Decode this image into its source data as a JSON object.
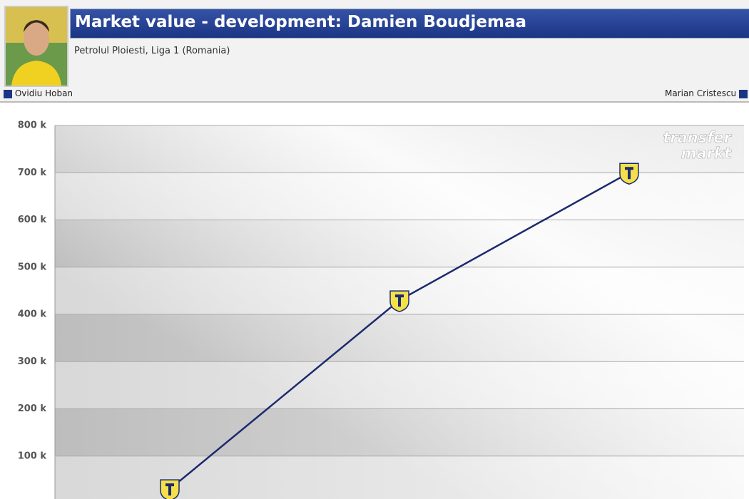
{
  "header": {
    "title": "Market value - development: Damien Boudjemaa",
    "subtitle": "Petrolul Ploiesti, Liga 1 (Romania)",
    "prev": "Ovidiu Hoban",
    "next": "Marian Cristescu"
  },
  "chart_data": {
    "type": "line",
    "categories": [
      null,
      null,
      null
    ],
    "values": [
      30000,
      430000,
      700000
    ],
    "color": "#1c2a6e",
    "ylim": [
      0,
      800000
    ],
    "yticks": [
      {
        "value": 100000,
        "label": "100 k"
      },
      {
        "value": 200000,
        "label": "200 k"
      },
      {
        "value": 300000,
        "label": "300 k"
      },
      {
        "value": 400000,
        "label": "400 k"
      },
      {
        "value": 500000,
        "label": "500 k"
      },
      {
        "value": 600000,
        "label": "600 k"
      },
      {
        "value": 700000,
        "label": "700 k"
      },
      {
        "value": 800000,
        "label": "800 k"
      }
    ],
    "grid": true,
    "watermark": [
      "transfer",
      "markt"
    ]
  }
}
